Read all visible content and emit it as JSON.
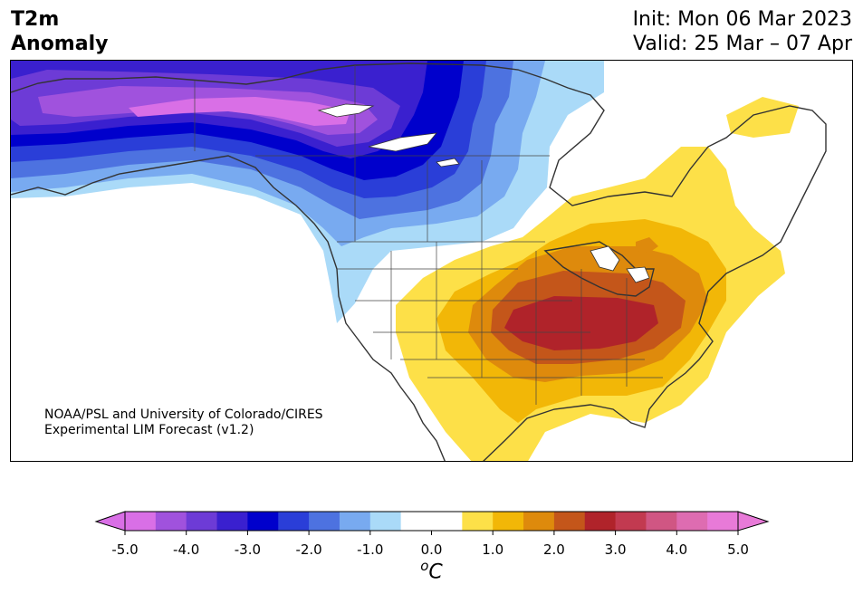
{
  "header": {
    "title_line1": "T2m",
    "title_line2": "Anomaly",
    "init": "Init: Mon 06 Mar 2023",
    "valid": "Valid: 25 Mar – 07 Apr"
  },
  "credit": {
    "line1": "NOAA/PSL and University of Colorado/CIRES",
    "line2": "Experimental LIM Forecast (v1.2)"
  },
  "colorbar": {
    "unit_prefix": "o",
    "unit_main": "C",
    "tick_labels": [
      "-5.0",
      "-4.0",
      "-3.0",
      "-2.0",
      "-1.0",
      "0.0",
      "1.0",
      "2.0",
      "3.0",
      "4.0",
      "5.0"
    ],
    "under_color": "#d96fe6",
    "over_color": "#e87ad8",
    "colors": [
      "#d96fe6",
      "#a052dd",
      "#6d3bd6",
      "#3a20cf",
      "#0000cc",
      "#2a3ed8",
      "#4d72e0",
      "#78aaf0",
      "#aadaf8",
      "#ffffff",
      "#ffffff",
      "#fde048",
      "#f2b707",
      "#de8a0c",
      "#c4561a",
      "#b0232a",
      "#c23a50",
      "#d05683",
      "#de6cb1",
      "#e87ad8"
    ]
  },
  "map": {
    "anomaly_colors": {
      "m5": "#d96fe6",
      "m4": "#a052dd",
      "m3": "#6d3bd6",
      "m25": "#3a20cf",
      "m2": "#0000cc",
      "m15": "#2a3ed8",
      "m1": "#4d72e0",
      "m05": "#78aaf0",
      "m0": "#aadaf8",
      "p05": "#fde048",
      "p1": "#f2b707",
      "p15": "#de8a0c",
      "p2": "#c4561a",
      "p25": "#b0232a"
    }
  }
}
